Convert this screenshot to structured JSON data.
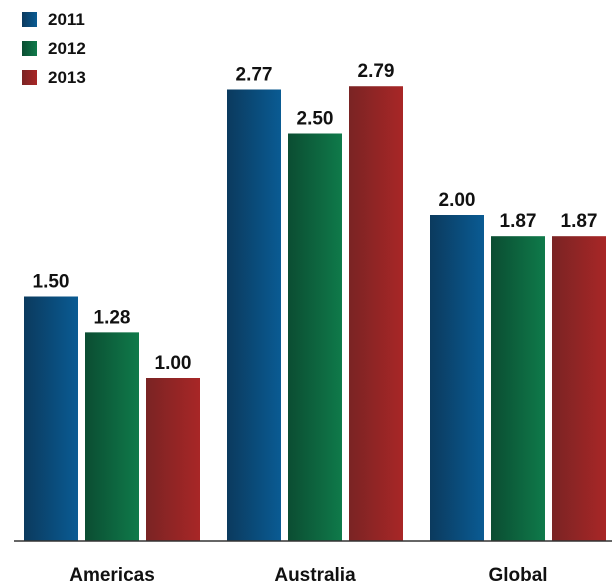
{
  "chart_data": {
    "type": "bar",
    "categories": [
      "Americas",
      "Australia",
      "Global"
    ],
    "series": [
      {
        "name": "2011",
        "values": [
          1.5,
          2.77,
          2.0
        ],
        "value_labels": [
          "1.50",
          "2.77",
          "2.00"
        ]
      },
      {
        "name": "2012",
        "values": [
          1.28,
          2.5,
          1.87
        ],
        "value_labels": [
          "1.28",
          "2.50",
          "1.87"
        ]
      },
      {
        "name": "2013",
        "values": [
          1.0,
          2.79,
          1.87
        ],
        "value_labels": [
          "1.00",
          "2.79",
          "1.87"
        ]
      }
    ],
    "ylim": [
      0,
      3.2
    ],
    "grid": false,
    "legend_position": "top-left",
    "colors": {
      "2011": [
        "#0a5b93",
        "#0b3a5e"
      ],
      "2012": [
        "#0f7a4a",
        "#0b4d32"
      ],
      "2013": [
        "#8a2a2a",
        "#a82626"
      ]
    }
  }
}
